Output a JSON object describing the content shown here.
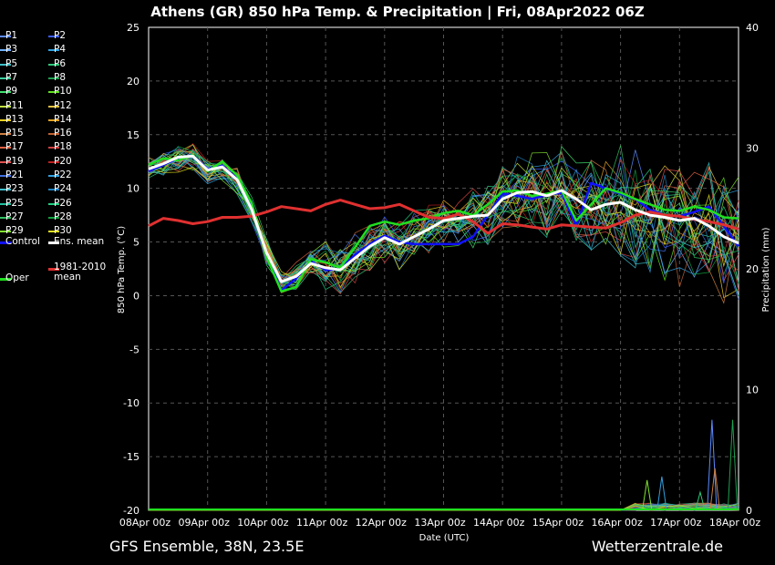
{
  "title": "Athens  (GR)  850 hPa Temp. & Precipitation | Fri, 08Apr2022 06Z",
  "footer_left": "GFS Ensemble, 38N, 23.5E",
  "footer_right": "Wetterzentrale.de",
  "chart_data": {
    "type": "line",
    "title": "Athens  (GR)  850 hPa Temp. & Precipitation | Fri, 08Apr2022 06Z",
    "xlabel": "Date (UTC)",
    "ylabel": "850 hPa Temp. (°C)",
    "ylabel_right": "Precipitation (mm)",
    "ylim": [
      -20,
      25
    ],
    "ylim_right": [
      0,
      40
    ],
    "yticks": [
      "25",
      "20",
      "15",
      "10",
      "5",
      "0",
      "-5",
      "-10",
      "-15",
      "-20"
    ],
    "yticks_right": [
      "40",
      "30",
      "20",
      "10",
      "0"
    ],
    "xticks": [
      "08Apr 00z",
      "09Apr 00z",
      "10Apr 00z",
      "11Apr 00z",
      "12Apr 00z",
      "13Apr 00z",
      "14Apr 00z",
      "15Apr 00z",
      "16Apr 00z",
      "17Apr 00z",
      "18Apr 00z"
    ],
    "grid": true,
    "legend_position": "left",
    "legend": [
      {
        "name": "P1",
        "color": "#5b8cff"
      },
      {
        "name": "P2",
        "color": "#3a5cff"
      },
      {
        "name": "P3",
        "color": "#6fb0ff"
      },
      {
        "name": "P4",
        "color": "#2fa0e0"
      },
      {
        "name": "P5",
        "color": "#3cc0c8"
      },
      {
        "name": "P6",
        "color": "#2ec87a"
      },
      {
        "name": "P7",
        "color": "#3cd0a0"
      },
      {
        "name": "P8",
        "color": "#1ea050"
      },
      {
        "name": "P9",
        "color": "#40e070"
      },
      {
        "name": "P10",
        "color": "#60e020"
      },
      {
        "name": "P11",
        "color": "#c0e040"
      },
      {
        "name": "P12",
        "color": "#e0c040"
      },
      {
        "name": "P13",
        "color": "#f0d020"
      },
      {
        "name": "P14",
        "color": "#e0a020"
      },
      {
        "name": "P15",
        "color": "#d08040"
      },
      {
        "name": "P16",
        "color": "#c06030"
      },
      {
        "name": "P17",
        "color": "#e06040"
      },
      {
        "name": "P18",
        "color": "#d04040"
      },
      {
        "name": "P19",
        "color": "#e05050"
      },
      {
        "name": "P20",
        "color": "#c02020"
      },
      {
        "name": "P21",
        "color": "#4070e0"
      },
      {
        "name": "P22",
        "color": "#30a0e0"
      },
      {
        "name": "P23",
        "color": "#40c0d0"
      },
      {
        "name": "P24",
        "color": "#2080c0"
      },
      {
        "name": "P25",
        "color": "#20c0a0"
      },
      {
        "name": "P26",
        "color": "#20d080"
      },
      {
        "name": "P27",
        "color": "#30c060"
      },
      {
        "name": "P28",
        "color": "#10a040"
      },
      {
        "name": "P29",
        "color": "#80e030"
      },
      {
        "name": "P30",
        "color": "#e0e020"
      },
      {
        "name": "Control",
        "color": "#1010ff"
      },
      {
        "name": "Ens. mean",
        "color": "#ffffff"
      },
      {
        "name": "Oper",
        "color": "#20e020"
      },
      {
        "name": "1981-2010 mean",
        "color": "#e03030"
      }
    ],
    "series": [
      {
        "name": "1981-2010 mean",
        "color": "#e03030",
        "x": [
          0,
          0.25,
          0.5,
          0.75,
          1,
          1.25,
          1.5,
          1.75,
          2,
          2.25,
          2.5,
          2.75,
          3,
          3.25,
          3.5,
          3.75,
          4,
          4.25,
          4.5,
          4.75,
          5,
          5.25,
          5.5,
          5.75,
          6,
          6.25,
          6.5,
          6.75,
          7,
          7.25,
          7.5,
          7.75,
          8,
          8.25,
          8.5,
          8.75,
          9,
          9.25,
          9.5,
          9.75,
          10
        ],
        "values": [
          6.5,
          7.2,
          7.0,
          6.7,
          6.9,
          7.3,
          7.3,
          7.4,
          7.8,
          8.3,
          8.1,
          7.9,
          8.5,
          8.9,
          8.5,
          8.1,
          8.2,
          8.5,
          7.9,
          7.3,
          7.2,
          7.6,
          6.9,
          5.8,
          6.7,
          6.6,
          6.4,
          6.2,
          6.6,
          6.5,
          6.4,
          6.3,
          6.8,
          7.5,
          7.8,
          7.5,
          7.4,
          7.1,
          6.9,
          6.6,
          6.2
        ]
      },
      {
        "name": "Ens. mean",
        "color": "#ffffff",
        "x": [
          0,
          0.25,
          0.5,
          0.75,
          1,
          1.25,
          1.5,
          1.75,
          2,
          2.25,
          2.5,
          2.75,
          3,
          3.25,
          3.5,
          3.75,
          4,
          4.25,
          4.5,
          4.75,
          5,
          5.25,
          5.5,
          5.75,
          6,
          6.25,
          6.5,
          6.75,
          7,
          7.25,
          7.5,
          7.75,
          8,
          8.25,
          8.5,
          8.75,
          9,
          9.25,
          9.5,
          9.75,
          10
        ],
        "values": [
          11.8,
          12.3,
          12.9,
          13.0,
          11.7,
          12.0,
          10.8,
          8.0,
          4.0,
          1.3,
          1.8,
          3.0,
          2.6,
          2.4,
          3.5,
          4.6,
          5.4,
          4.8,
          5.5,
          6.2,
          7.0,
          7.2,
          7.4,
          7.5,
          9.0,
          9.6,
          9.7,
          9.3,
          9.8,
          9.0,
          8.0,
          8.5,
          8.7,
          8.0,
          7.5,
          7.3,
          7.0,
          7.2,
          6.5,
          5.5,
          4.9
        ]
      },
      {
        "name": "Control",
        "color": "#1010ff",
        "x": [
          0,
          0.25,
          0.5,
          0.75,
          1,
          1.25,
          1.5,
          1.75,
          2,
          2.25,
          2.5,
          2.75,
          3,
          3.25,
          3.5,
          3.75,
          4,
          4.25,
          4.5,
          4.75,
          5,
          5.25,
          5.5,
          5.75,
          6,
          6.25,
          6.5,
          6.75,
          7,
          7.25,
          7.5,
          7.75,
          8,
          8.25,
          8.5,
          8.75,
          9,
          9.25,
          9.5,
          9.75,
          10
        ],
        "values": [
          11.6,
          12.2,
          12.8,
          13.1,
          11.8,
          12.1,
          10.9,
          8.2,
          3.8,
          0.5,
          1.6,
          3.2,
          2.4,
          2.5,
          3.8,
          4.8,
          5.6,
          5.0,
          4.8,
          4.8,
          4.8,
          4.8,
          5.5,
          7.5,
          9.5,
          9.3,
          9.0,
          9.4,
          9.6,
          6.5,
          10.5,
          10.0,
          9.5,
          9.0,
          8.0,
          7.5,
          7.4,
          7.8,
          8.3,
          6.5,
          4.6
        ]
      },
      {
        "name": "Oper",
        "color": "#20e020",
        "x": [
          0,
          0.25,
          0.5,
          0.75,
          1,
          1.25,
          1.5,
          1.75,
          2,
          2.25,
          2.5,
          2.75,
          3,
          3.25,
          3.5,
          3.75,
          4,
          4.25,
          4.5,
          4.75,
          5,
          5.25,
          5.5,
          5.75,
          6,
          6.25,
          6.5,
          6.75,
          7,
          7.25,
          7.5,
          7.75,
          8,
          8.25,
          8.5,
          8.75,
          9,
          9.25,
          9.5,
          9.75,
          10
        ],
        "values": [
          12.2,
          12.8,
          12.6,
          13.1,
          11.6,
          12.5,
          11.2,
          8.6,
          3.6,
          0.4,
          0.8,
          3.4,
          3.1,
          2.6,
          4.5,
          6.5,
          6.9,
          6.6,
          7.0,
          7.2,
          7.7,
          7.9,
          7.5,
          8.5,
          9.7,
          9.8,
          9.3,
          9.5,
          9.8,
          7.0,
          8.5,
          10.0,
          9.6,
          9.0,
          8.5,
          8.0,
          7.9,
          8.3,
          8.0,
          7.3,
          7.2
        ]
      }
    ],
    "precip_spikes": [
      {
        "x": 9.55,
        "mm": 7.5
      },
      {
        "x": 9.9,
        "mm": 7.5
      },
      {
        "x": 9.6,
        "mm": 3.5
      },
      {
        "x": 8.7,
        "mm": 2.8
      },
      {
        "x": 8.45,
        "mm": 2.5
      },
      {
        "x": 9.35,
        "mm": 1.5
      }
    ]
  }
}
